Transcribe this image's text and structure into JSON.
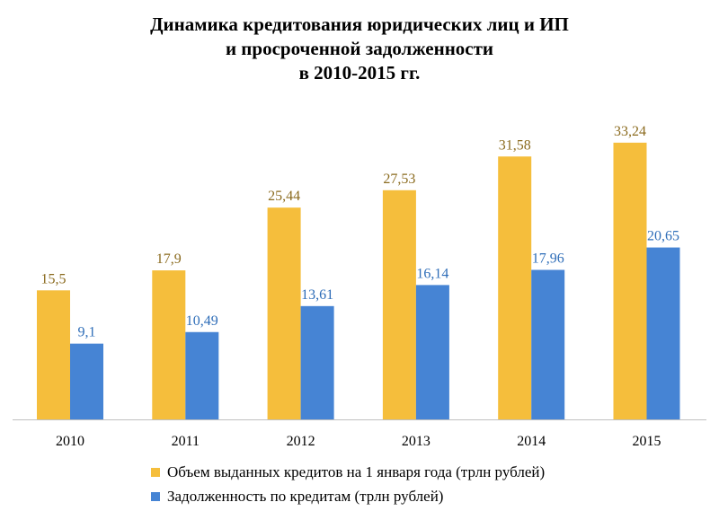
{
  "colors": {
    "series1": "#F5BE3C",
    "series2": "#4684D4",
    "label1": "#8B6B1F",
    "label2": "#2E6DB8",
    "axis": "#BFBFBF"
  },
  "chart_data": {
    "type": "bar",
    "title_lines": [
      "Динамика кредитования юридических лиц и ИП",
      "и просроченной задолженности",
      "в 2010-2015 гг."
    ],
    "categories": [
      "2010",
      "2011",
      "2012",
      "2013",
      "2014",
      "2015"
    ],
    "series": [
      {
        "name": "Объем выданных кредитов на 1 января года (трлн рублей)",
        "values": [
          15.5,
          17.9,
          25.44,
          27.53,
          31.58,
          33.24
        ],
        "labels": [
          "15,5",
          "17,9",
          "25,44",
          "27,53",
          "31,58",
          "33,24"
        ]
      },
      {
        "name": "Задолженность по кредитам (трлн рублей)",
        "values": [
          9.1,
          10.49,
          13.61,
          16.14,
          17.96,
          20.65
        ],
        "labels": [
          "9,1",
          "10,49",
          "13,61",
          "16,14",
          "17,96",
          "20,65"
        ]
      }
    ],
    "ylim": [
      0,
      33.24
    ],
    "grid": false,
    "legend_position": "bottom"
  }
}
